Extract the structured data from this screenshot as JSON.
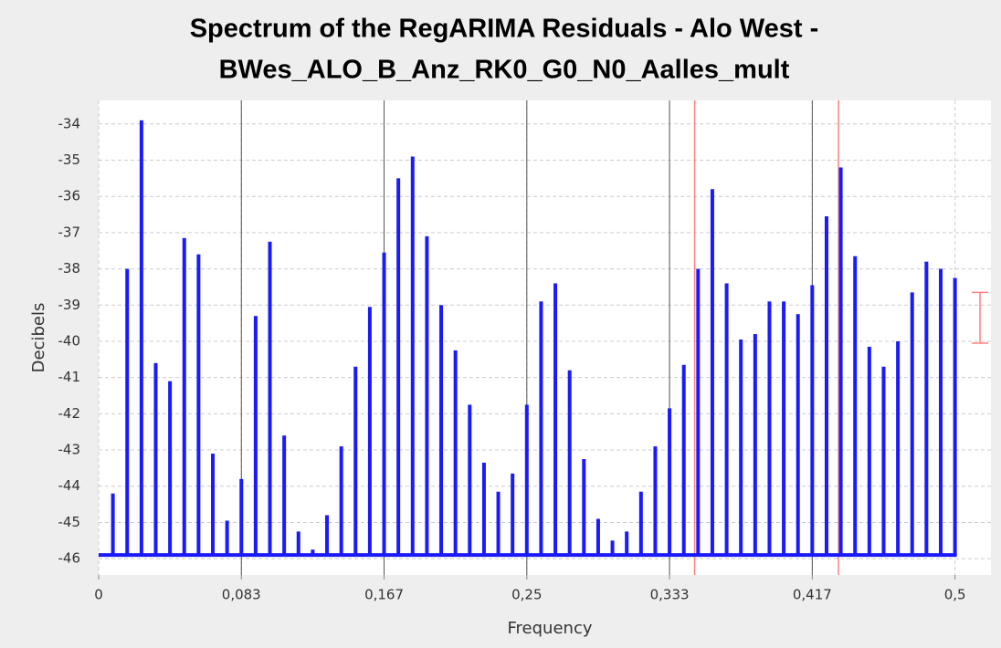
{
  "chart_data": {
    "type": "spectrum",
    "title": [
      "Spectrum of the RegARIMA Residuals - Alo West -",
      "BWes_ALO_B_Anz_RK0_G0_N0_Aalles_mult"
    ],
    "x_label": "Frequency",
    "y_label": "Decibels",
    "color": "#1a1aff",
    "baseline": -45.9,
    "x": [
      0.00833,
      0.01667,
      0.025,
      0.03333,
      0.04167,
      0.05,
      0.05833,
      0.06667,
      0.075,
      0.08333,
      0.09167,
      0.1,
      0.10833,
      0.11667,
      0.125,
      0.13333,
      0.14167,
      0.15,
      0.15833,
      0.16667,
      0.175,
      0.18333,
      0.19167,
      0.2,
      0.20833,
      0.21667,
      0.225,
      0.23333,
      0.24167,
      0.25,
      0.25833,
      0.26667,
      0.275,
      0.28333,
      0.29167,
      0.3,
      0.30833,
      0.31667,
      0.325,
      0.33333,
      0.34167,
      0.35,
      0.35833,
      0.36667,
      0.375,
      0.38333,
      0.39167,
      0.4,
      0.40833,
      0.41667,
      0.425,
      0.43333,
      0.44167,
      0.45,
      0.45833,
      0.46667,
      0.475,
      0.48333,
      0.49167,
      0.5
    ],
    "values": [
      -44.2,
      -38.0,
      -33.9,
      -40.6,
      -41.1,
      -37.15,
      -37.6,
      -43.1,
      -44.95,
      -43.8,
      -39.3,
      -37.25,
      -42.6,
      -45.25,
      -45.75,
      -44.8,
      -42.9,
      -40.7,
      -39.05,
      -37.55,
      -35.5,
      -34.9,
      -37.1,
      -39.0,
      -40.25,
      -41.75,
      -43.35,
      -44.15,
      -43.65,
      -41.75,
      -38.9,
      -38.4,
      -40.8,
      -43.25,
      -44.9,
      -45.5,
      -45.25,
      -44.15,
      -42.9,
      -41.85,
      -40.65,
      -38.0,
      -35.8,
      -38.4,
      -39.95,
      -39.8,
      -38.9,
      -38.9,
      -39.25,
      -38.45,
      -36.55,
      -35.2,
      -37.65,
      -40.15,
      -40.7,
      -40.0,
      -38.65,
      -37.8,
      -38.0,
      -38.25
    ],
    "seasonal_lines": [
      0.08333,
      0.16667,
      0.25,
      0.33333,
      0.41667
    ],
    "seasonal_color": "#555555",
    "trading_day_lines": [
      0.348,
      0.432
    ],
    "trading_day_color": "#ff8080",
    "ci": [
      -38.65,
      -40.05
    ],
    "xlim": [
      0,
      0.521
    ],
    "ylim": [
      -46.45,
      -33.35
    ],
    "xticks": [
      0,
      {
        "value": 0.08333,
        "label": "0,083"
      },
      {
        "value": 0.16667,
        "label": "0,167"
      },
      {
        "value": 0.25,
        "label": "0,25"
      },
      {
        "value": 0.33333,
        "label": "0,333"
      },
      {
        "value": 0.41667,
        "label": "0,417"
      },
      {
        "value": 0.5,
        "label": "0,5"
      }
    ],
    "yticks": [
      -46,
      -45,
      -44,
      -43,
      -42,
      -41,
      -40,
      -39,
      -38,
      -37,
      -36,
      -35,
      -34
    ],
    "grid": true
  }
}
